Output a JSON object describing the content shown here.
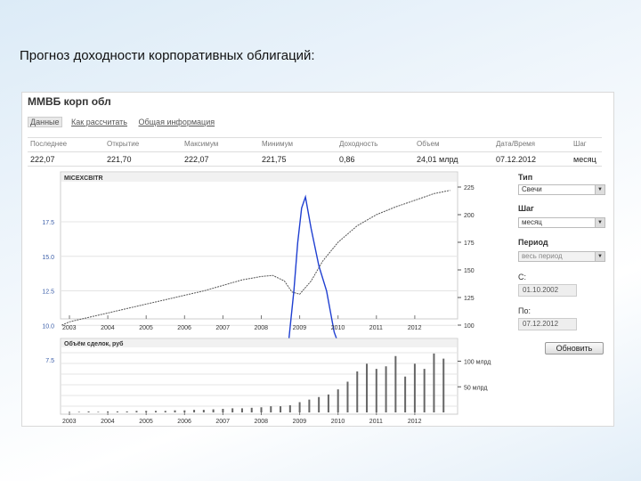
{
  "slide_title": "Прогноз доходности корпоративных облигаций:",
  "panel": {
    "title": "ММВБ корп обл",
    "tabs": [
      "Данные",
      "Как рассчитать",
      "Общая информация"
    ],
    "stats": [
      {
        "label": "Последнее",
        "value": "222,07"
      },
      {
        "label": "Открытие",
        "value": "221,70"
      },
      {
        "label": "Максимум",
        "value": "222,07"
      },
      {
        "label": "Минимум",
        "value": "221,75"
      },
      {
        "label": "Доходность",
        "value": "0,86"
      },
      {
        "label": "Объем",
        "value": "24,01 млрд"
      },
      {
        "label": "Дата/Время",
        "value": "07.12.2012"
      },
      {
        "label": "Шаг",
        "value": "месяц"
      }
    ]
  },
  "controls": {
    "type_label": "Тип",
    "type_value": "Свечи",
    "step_label": "Шаг",
    "step_value": "месяц",
    "period_label": "Период",
    "period_value": "весь период",
    "from_label": "С:",
    "from_value": "01.10.2002",
    "to_label": "По:",
    "to_value": "07.12.2012",
    "refresh_label": "Обновить"
  },
  "chart_data": [
    {
      "type": "line",
      "title": "MICEXCBITR",
      "x_labels": [
        "2003",
        "2004",
        "2005",
        "2006",
        "2007",
        "2008",
        "2009",
        "2010",
        "2011",
        "2012"
      ],
      "y_left_ticks": [
        "17.5",
        "15.0",
        "12.5",
        "10.0",
        "7.5"
      ],
      "y_right_ticks": [
        "225",
        "200",
        "175",
        "150",
        "125",
        "100"
      ],
      "grid": true,
      "series": [
        {
          "color": "#555555",
          "axis": "right",
          "x": [
            2002.8,
            2003.0,
            2003.5,
            2004.0,
            2004.5,
            2005.0,
            2005.5,
            2006.0,
            2006.5,
            2007.0,
            2007.5,
            2008.0,
            2008.3,
            2008.6,
            2008.8,
            2009.0,
            2009.3,
            2009.6,
            2010.0,
            2010.5,
            2011.0,
            2011.5,
            2012.0,
            2012.5,
            2012.92
          ],
          "y": [
            100,
            103,
            107,
            111,
            115,
            119,
            123,
            127,
            131,
            136,
            141,
            144,
            145,
            140,
            130,
            128,
            140,
            158,
            175,
            190,
            200,
            207,
            213,
            219,
            222
          ]
        },
        {
          "color": "#1f3fd1",
          "axis": "left",
          "x": [
            2008.5,
            2008.7,
            2008.85,
            2008.95,
            2009.05,
            2009.15,
            2009.3,
            2009.5,
            2009.7,
            2009.9,
            2010.1,
            2010.4,
            2010.7,
            2011.0,
            2011.3,
            2011.6,
            2011.9,
            2012.1,
            2012.3,
            2012.5,
            2012.7,
            2012.85
          ],
          "y": [
            7.8,
            8.5,
            12.5,
            16.0,
            18.5,
            19.3,
            17.0,
            14.3,
            12.5,
            9.5,
            8.0,
            7.6,
            7.0,
            6.8,
            7.2,
            7.6,
            8.0,
            8.8,
            8.6,
            8.8,
            9.0,
            8.7
          ]
        }
      ]
    },
    {
      "type": "bar",
      "title": "Объём сделок, руб",
      "x_labels": [
        "2003",
        "2004",
        "2005",
        "2006",
        "2007",
        "2008",
        "2009",
        "2010",
        "2011",
        "2012"
      ],
      "y_right_ticks": [
        "100 млрд",
        "50 млрд"
      ],
      "color": "#666666",
      "x": [
        2003.0,
        2003.25,
        2003.5,
        2003.75,
        2004.0,
        2004.25,
        2004.5,
        2004.75,
        2005.0,
        2005.25,
        2005.5,
        2005.75,
        2006.0,
        2006.25,
        2006.5,
        2006.75,
        2007.0,
        2007.25,
        2007.5,
        2007.75,
        2008.0,
        2008.25,
        2008.5,
        2008.75,
        2009.0,
        2009.25,
        2009.5,
        2009.75,
        2010.0,
        2010.25,
        2010.5,
        2010.75,
        2011.0,
        2011.25,
        2011.5,
        2011.75,
        2012.0,
        2012.25,
        2012.5,
        2012.75
      ],
      "values": [
        1,
        1,
        2,
        1,
        2,
        2,
        2,
        3,
        3,
        3,
        3,
        4,
        4,
        5,
        5,
        6,
        7,
        8,
        8,
        9,
        10,
        12,
        12,
        14,
        20,
        25,
        30,
        35,
        45,
        60,
        80,
        95,
        85,
        90,
        110,
        70,
        95,
        85,
        115,
        105
      ]
    }
  ]
}
